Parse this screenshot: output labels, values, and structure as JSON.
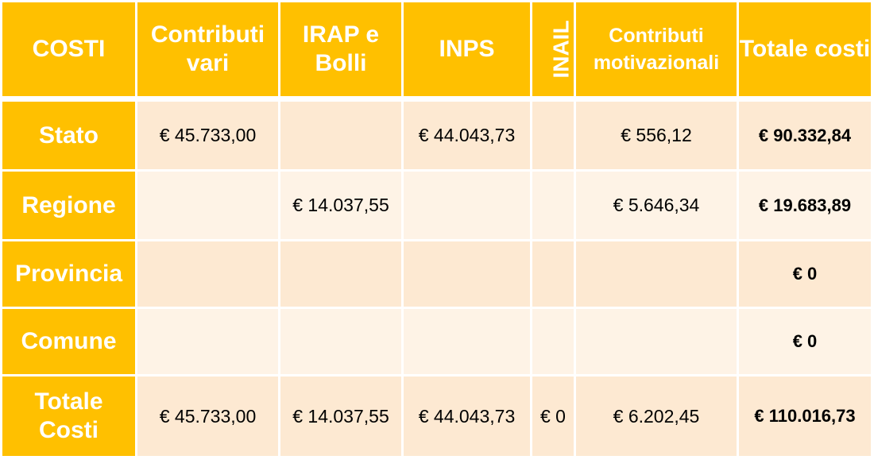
{
  "header": {
    "costi": "COSTI",
    "contributi_vari": "Contributi vari",
    "irap_bolli": "IRAP e Bolli",
    "inps": "INPS",
    "inail": "INAIL",
    "contributi_motivazionali": "Contributi motivazionali",
    "totale_costi": "Totale costi"
  },
  "rows": [
    {
      "label": "Stato",
      "contributi_vari": "€ 45.733,00",
      "irap_bolli": "",
      "inps": "€ 44.043,73",
      "inail": "",
      "contributi_motivazionali": "€ 556,12",
      "totale": "€ 90.332,84"
    },
    {
      "label": "Regione",
      "contributi_vari": "",
      "irap_bolli": "€ 14.037,55",
      "inps": "",
      "inail": "",
      "contributi_motivazionali": "€ 5.646,34",
      "totale": "€ 19.683,89"
    },
    {
      "label": "Provincia",
      "contributi_vari": "",
      "irap_bolli": "",
      "inps": "",
      "inail": "",
      "contributi_motivazionali": "",
      "totale": "€ 0"
    },
    {
      "label": "Comune",
      "contributi_vari": "",
      "irap_bolli": "",
      "inps": "",
      "inail": "",
      "contributi_motivazionali": "",
      "totale": "€ 0"
    },
    {
      "label": "Totale Costi",
      "contributi_vari": "€ 45.733,00",
      "irap_bolli": "€ 14.037,55",
      "inps": "€ 44.043,73",
      "inail": "€ 0",
      "contributi_motivazionali": "€ 6.202,45",
      "totale": "€ 110.016,73"
    }
  ],
  "colors": {
    "header_bg": "#ffc000",
    "row_bg_dark": "#fde9d2",
    "row_bg_light": "#fef3e6",
    "header_text": "#ffffff"
  }
}
